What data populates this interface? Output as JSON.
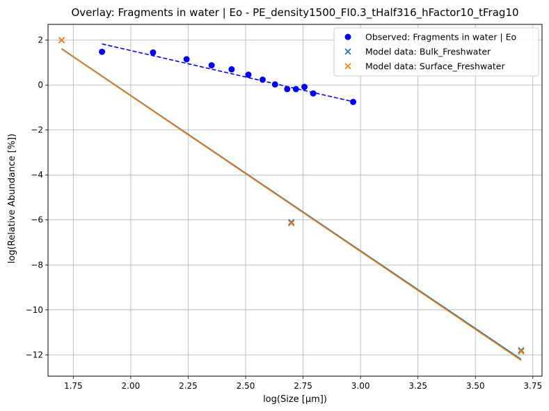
{
  "chart_data": {
    "type": "scatter",
    "title": "Overlay: Fragments in water | Eo - PE_density1500_FI0.3_tHalf316_hFactor10_tFrag10",
    "xlabel": "log(Size [μm])",
    "ylabel": "log(Relative Abundance [%])",
    "xlim": [
      1.64,
      3.79
    ],
    "ylim": [
      -12.95,
      2.7
    ],
    "xticks": [
      1.75,
      2.0,
      2.25,
      2.5,
      2.75,
      3.0,
      3.25,
      3.5,
      3.75
    ],
    "xtick_labels": [
      "1.75",
      "2.00",
      "2.25",
      "2.50",
      "2.75",
      "3.00",
      "3.25",
      "3.50",
      "3.75"
    ],
    "yticks": [
      2,
      0,
      -2,
      -4,
      -6,
      -8,
      -10,
      -12
    ],
    "ytick_labels": [
      "2",
      "0",
      "−2",
      "−4",
      "−6",
      "−8",
      "−10",
      "−12"
    ],
    "grid": true,
    "legend_position": "top-right",
    "series": [
      {
        "name": "Observed: Fragments in water | Eo",
        "kind": "scatter",
        "marker": "circle",
        "color": "#0000ff",
        "x": [
          1.875,
          2.097,
          2.243,
          2.352,
          2.439,
          2.512,
          2.574,
          2.628,
          2.681,
          2.719,
          2.756,
          2.794,
          2.968
        ],
        "y": [
          1.48,
          1.45,
          1.15,
          0.88,
          0.7,
          0.46,
          0.24,
          0.03,
          -0.18,
          -0.18,
          -0.08,
          -0.37,
          -0.75
        ]
      },
      {
        "name": "Observed fit",
        "kind": "line",
        "dash": true,
        "color": "#0000ff",
        "x": [
          1.875,
          2.968
        ],
        "y": [
          1.83,
          -0.74
        ]
      },
      {
        "name": "Model data: Bulk_Freshwater",
        "kind": "scatter",
        "marker": "x",
        "color": "#1f77b4",
        "x": [
          1.699,
          2.699,
          3.699
        ],
        "y": [
          2.0,
          -6.1,
          -11.8
        ]
      },
      {
        "name": "Model data: Surface_Freshwater",
        "kind": "scatter",
        "marker": "x",
        "color": "#ff7f0e",
        "x": [
          1.699,
          2.699,
          3.699
        ],
        "y": [
          2.0,
          -6.15,
          -11.85
        ]
      },
      {
        "name": "Bulk fit",
        "kind": "line",
        "dash": false,
        "color": "#1f77b4",
        "x": [
          1.699,
          3.699
        ],
        "y": [
          1.62,
          -12.2
        ]
      },
      {
        "name": "Surface fit",
        "kind": "line",
        "dash": false,
        "color": "#ff7f0e",
        "x": [
          1.699,
          3.699
        ],
        "y": [
          1.6,
          -12.25
        ]
      }
    ],
    "legend_entries": [
      0,
      2,
      3
    ]
  }
}
